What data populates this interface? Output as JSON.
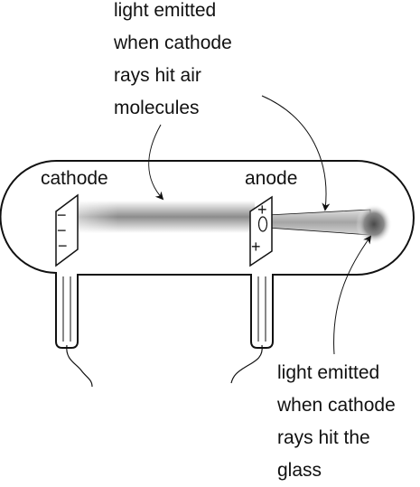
{
  "labels": {
    "cathode": "cathode",
    "anode": "anode",
    "air_glow": [
      "light emitted",
      "when cathode",
      "rays hit air",
      "molecules"
    ],
    "glass_glow": [
      "light emitted",
      "when cathode",
      "rays hit the",
      "glass"
    ]
  },
  "signs": {
    "cathode_top": "−",
    "cathode_mid": "−",
    "cathode_bottom": "−",
    "anode_top": "+",
    "anode_bottom": "+"
  },
  "colors": {
    "outline": "#111111",
    "beam": "#9a9a9a",
    "glow": "#6e6e6e"
  }
}
